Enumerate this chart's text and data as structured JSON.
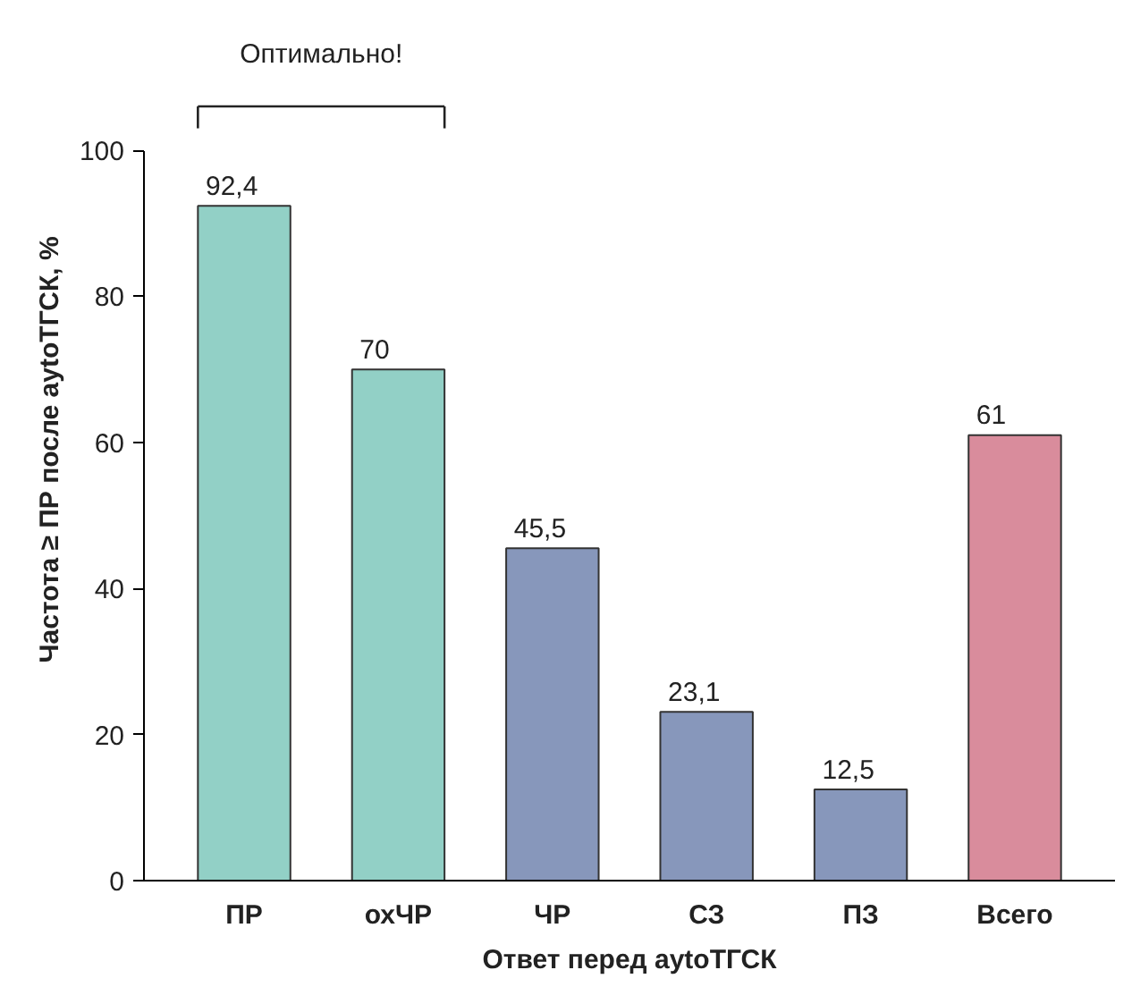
{
  "chart_data": {
    "type": "bar",
    "xlabel": "Ответ перед ауtoТГСК",
    "ylabel": "Частота ≥ ПР после ауtoТГСК, %",
    "categories": [
      "ПР",
      "охЧР",
      "ЧР",
      "СЗ",
      "ПЗ",
      "Всего"
    ],
    "values": [
      92.4,
      70,
      45.5,
      23.1,
      12.5,
      61
    ],
    "value_labels": [
      "92,4",
      "70",
      "45,5",
      "23,1",
      "12,5",
      "61"
    ],
    "colors": [
      "#92d0c6",
      "#92d0c6",
      "#8797bb",
      "#8797bb",
      "#8797bb",
      "#d98c9c"
    ],
    "ylim": [
      0,
      100
    ],
    "yticks": [
      0,
      20,
      40,
      60,
      80,
      100
    ],
    "grid": false,
    "annotations": [
      "Оптимально!"
    ]
  }
}
